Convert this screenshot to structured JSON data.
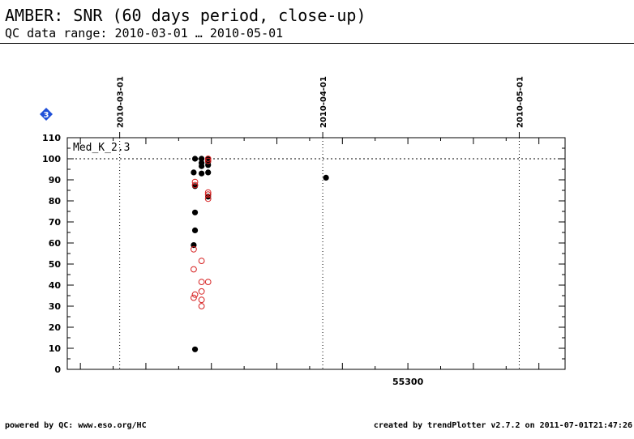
{
  "header": {
    "title": "AMBER: SNR (60 days period, close-up)",
    "subtitle": "QC data range: 2010-03-01 … 2010-05-01"
  },
  "footer": {
    "left": "powered by QC: www.eso.org/HC",
    "right": "created by trendPlotter v2.7.2 on 2011-07-01T21:47:26"
  },
  "badge": {
    "label": "3",
    "color": "#1f4fd8"
  },
  "colors": {
    "filled": "#000000",
    "open": "#d62020",
    "axis": "#000000"
  },
  "chart_data": {
    "type": "scatter",
    "title": "",
    "panel_label": "Med_K_2.3",
    "xlabel": "",
    "ylabel": "",
    "xlim": [
      55248.0,
      55324.0
    ],
    "ylim": [
      0,
      110
    ],
    "grid": false,
    "yticks": [
      0,
      10,
      20,
      30,
      40,
      50,
      60,
      70,
      80,
      90,
      100,
      110
    ],
    "xticks": [
      55300
    ],
    "xtick_labels": [
      "55300"
    ],
    "reference_line": 100,
    "date_markers": [
      {
        "x": 55256.0,
        "label": "2010-03-01"
      },
      {
        "x": 55287.0,
        "label": "2010-04-01"
      },
      {
        "x": 55317.0,
        "label": "2010-05-01"
      }
    ],
    "series": [
      {
        "marker": "filled",
        "points": [
          [
            55267.5,
            100
          ],
          [
            55268.5,
            100
          ],
          [
            55268.5,
            98
          ],
          [
            55268.5,
            96.5
          ],
          [
            55268.5,
            93
          ],
          [
            55269.5,
            100
          ],
          [
            55269.5,
            98.5
          ],
          [
            55269.5,
            97
          ],
          [
            55269.5,
            93.5
          ],
          [
            55269.5,
            82
          ],
          [
            55267.3,
            93.5
          ],
          [
            55267.5,
            87
          ],
          [
            55267.5,
            74.5
          ],
          [
            55267.5,
            66
          ],
          [
            55267.3,
            59
          ],
          [
            55267.5,
            9.5
          ],
          [
            55287.5,
            91
          ]
        ]
      },
      {
        "marker": "open",
        "points": [
          [
            55269.5,
            100
          ],
          [
            55269.5,
            99
          ],
          [
            55267.5,
            89
          ],
          [
            55267.5,
            87.5
          ],
          [
            55269.5,
            84
          ],
          [
            55269.5,
            83
          ],
          [
            55269.5,
            81
          ],
          [
            55267.3,
            57
          ],
          [
            55268.5,
            51.5
          ],
          [
            55267.3,
            47.5
          ],
          [
            55268.5,
            41.5
          ],
          [
            55269.5,
            41.5
          ],
          [
            55268.5,
            37
          ],
          [
            55267.5,
            35.5
          ],
          [
            55267.3,
            34
          ],
          [
            55268.5,
            33
          ],
          [
            55268.5,
            30
          ]
        ]
      }
    ]
  }
}
